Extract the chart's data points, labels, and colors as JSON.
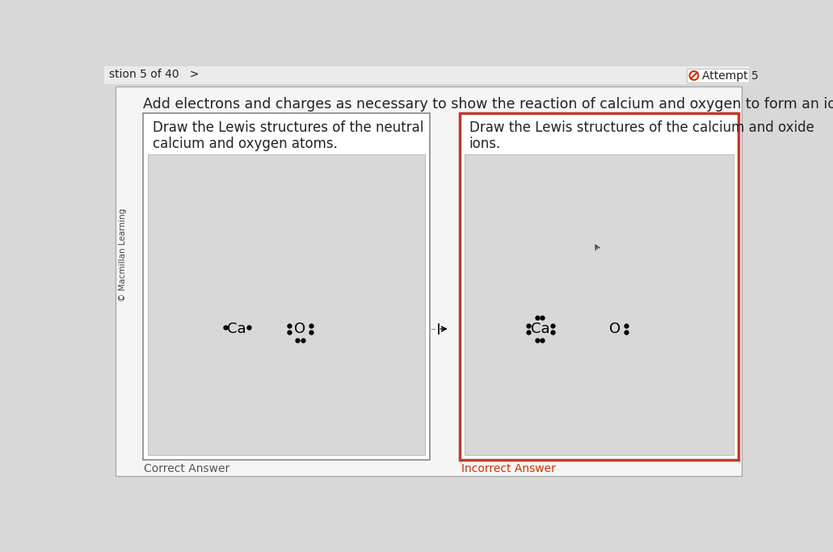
{
  "bg_color": "#d8d8d8",
  "white": "#ffffff",
  "dark_gray": "#222222",
  "light_gray": "#d0d0d0",
  "panel_gray": "#d4d4d4",
  "red_border": "#c0392b",
  "page_title": "Add electrons and charges as necessary to show the reaction of calcium and oxygen to form an ionic compound.",
  "top_left_text": "stion 5 of 40   >",
  "top_right_text": "Attempt 5",
  "left_panel_title1": "Draw the Lewis structures of the neutral",
  "left_panel_title2": "calcium and oxygen atoms.",
  "right_panel_title1": "Draw the Lewis structures of the calcium and oxide",
  "right_panel_title2": "ions.",
  "correct_answer_label": "Correct Answer",
  "incorrect_answer_label": "Incorrect Answer",
  "sidebar_text": "© Macmillan Learning",
  "main_bg": "#f5f5f5",
  "inner_gray": "#d8d8d8"
}
